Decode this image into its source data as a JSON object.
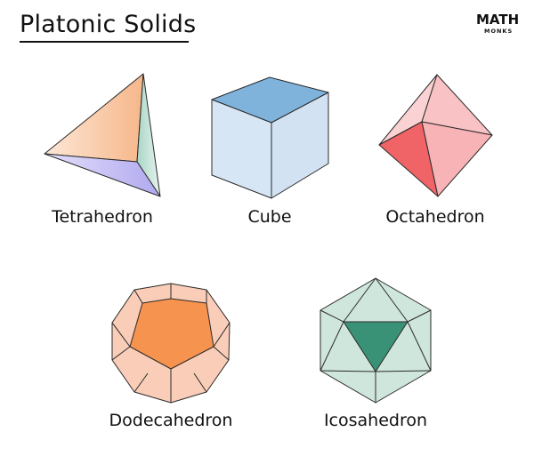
{
  "title": "Platonic Solids",
  "logo": {
    "word": "MATH",
    "sub": "MONKS"
  },
  "solids": [
    {
      "label": "Tetrahedron"
    },
    {
      "label": "Cube"
    },
    {
      "label": "Octahedron"
    },
    {
      "label": "Dodecahedron"
    },
    {
      "label": "Icosahedron"
    }
  ],
  "colors": {
    "tetra_face_left": "#f9c79e",
    "tetra_face_bottom": "#c7c2f2",
    "tetra_face_right": "#cfe9df",
    "cube_top": "#7fb3dc",
    "cube_side": "#d6e5f3",
    "octa_face": "#f8b9bb",
    "octa_dark": "#f06468",
    "dodeca_face": "#f9c8b2",
    "dodeca_center": "#f6934f",
    "icosa_face": "#c7e2d7",
    "icosa_center": "#3a9276",
    "logo_accent": "#e8683b"
  }
}
